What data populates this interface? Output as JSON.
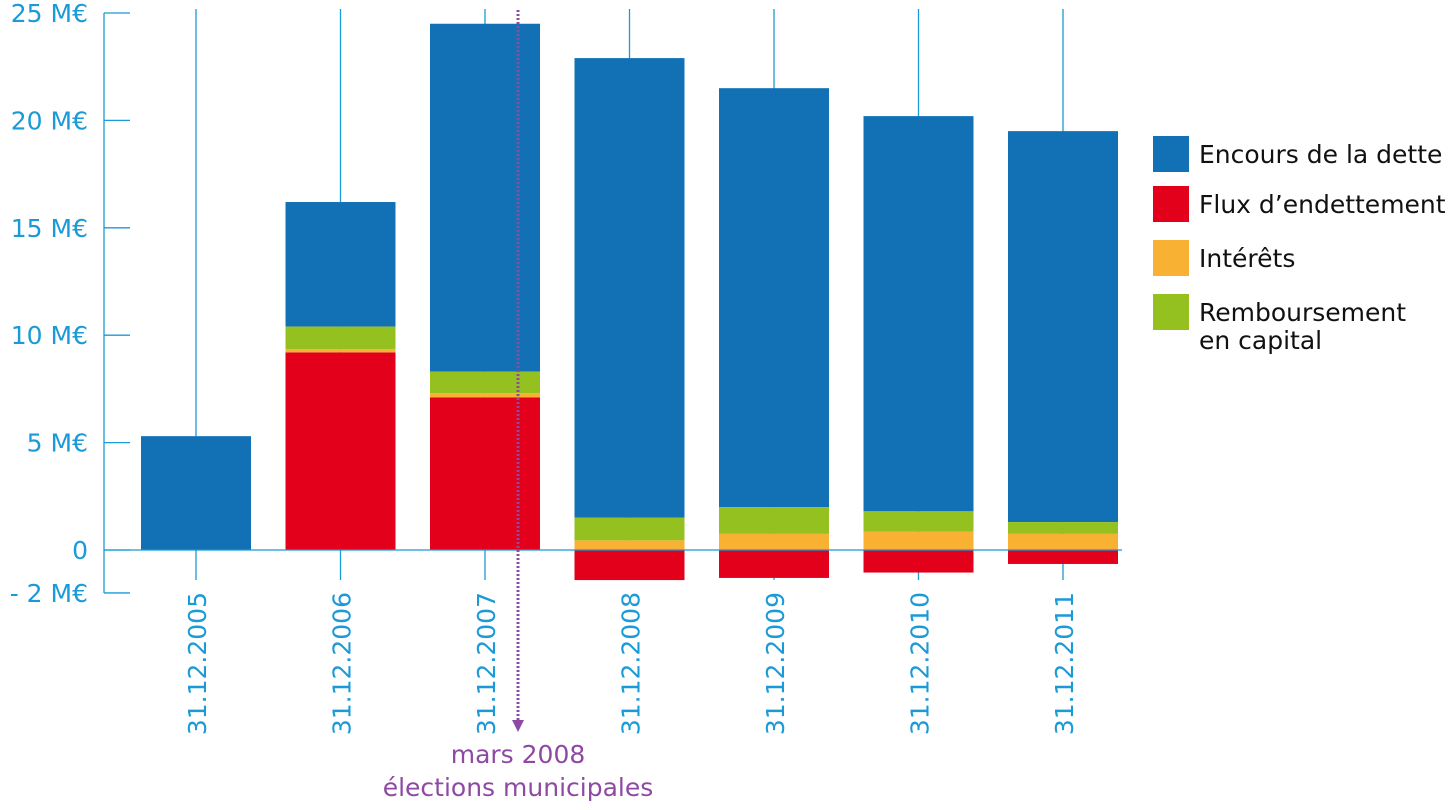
{
  "chart_data": {
    "type": "bar",
    "stacked": true,
    "categories": [
      "31.12.2005",
      "31.12.2006",
      "31.12.2007",
      "31.12.2008",
      "31.12.2009",
      "31.12.2010",
      "31.12.2011"
    ],
    "series": [
      {
        "name": "Encours de la dette",
        "color": "#1271b4",
        "base": [
          0,
          10.4,
          8.3,
          1.5,
          2.0,
          1.8,
          1.3
        ],
        "values": [
          5.3,
          5.8,
          16.2,
          21.4,
          19.5,
          18.4,
          18.2
        ]
      },
      {
        "name": "Flux d’endettement",
        "color": "#e2001a",
        "base": [
          0,
          0,
          0,
          0,
          0,
          0,
          0
        ],
        "values": [
          0,
          9.2,
          7.1,
          -1.4,
          -1.3,
          -1.05,
          -0.65
        ]
      },
      {
        "name": "Intérêts",
        "color": "#f8b133",
        "base": [
          0,
          9.2,
          7.1,
          0,
          0,
          0,
          0
        ],
        "values": [
          0,
          0.15,
          0.2,
          0.45,
          0.75,
          0.85,
          0.75
        ]
      },
      {
        "name": "Remboursement en capital",
        "color": "#94c11f",
        "base": [
          0,
          9.35,
          7.3,
          0.45,
          0.75,
          0.85,
          0.75
        ],
        "values": [
          0,
          1.05,
          1.0,
          1.05,
          1.25,
          0.95,
          0.55
        ]
      }
    ],
    "legend": {
      "placement": "right",
      "items": [
        {
          "lines": [
            "Encours de la dette"
          ],
          "color": "#1271b4"
        },
        {
          "lines": [
            "Flux d’endettement"
          ],
          "color": "#e2001a"
        },
        {
          "lines": [
            "Intérêts"
          ],
          "color": "#f8b133"
        },
        {
          "lines": [
            "Remboursement",
            "en capital"
          ],
          "color": "#94c11f"
        }
      ]
    },
    "y_ticks": [
      {
        "value": 25,
        "label": "25 M€"
      },
      {
        "value": 20,
        "label": "20 M€"
      },
      {
        "value": 15,
        "label": "15 M€"
      },
      {
        "value": 10,
        "label": "10 M€"
      },
      {
        "value": 5,
        "label": "5 M€"
      },
      {
        "value": 0,
        "label": "0"
      },
      {
        "value": -2,
        "label": "- 2 M€"
      }
    ],
    "ylim": [
      -2,
      25
    ],
    "grid": "vertical lines at each category",
    "annotation": {
      "position": "between 31.12.2007 and 31.12.2008",
      "lines": [
        "mars 2008",
        "élections municipales"
      ],
      "color": "#8e4aa3"
    }
  }
}
